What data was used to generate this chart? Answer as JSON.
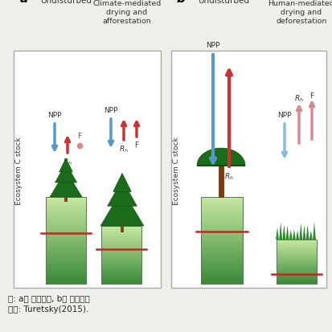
{
  "panel_a_title": "a",
  "panel_b_title": "b",
  "col1_label": "Undisturbed",
  "col2_label": "Climate-mediated\ndrying and\nafforestation",
  "col3_label": "Undisturbed",
  "col4_label": "Human-mediated\ndrying and\ndeforestation",
  "footer_line1": "주: a는 한대습지, b는 열대습지",
  "footer_line2": "자료: Turetsky(2015).",
  "bg_color": "#f0f0eb",
  "arrow_blue": "#5599cc",
  "arrow_blue_light": "#88bbdd",
  "arrow_red_dark": "#cc3333",
  "arrow_red_light": "#dd8888",
  "red_line_color": "#cc2222",
  "panel_border": "#aaaaaa",
  "text_color": "#333333"
}
